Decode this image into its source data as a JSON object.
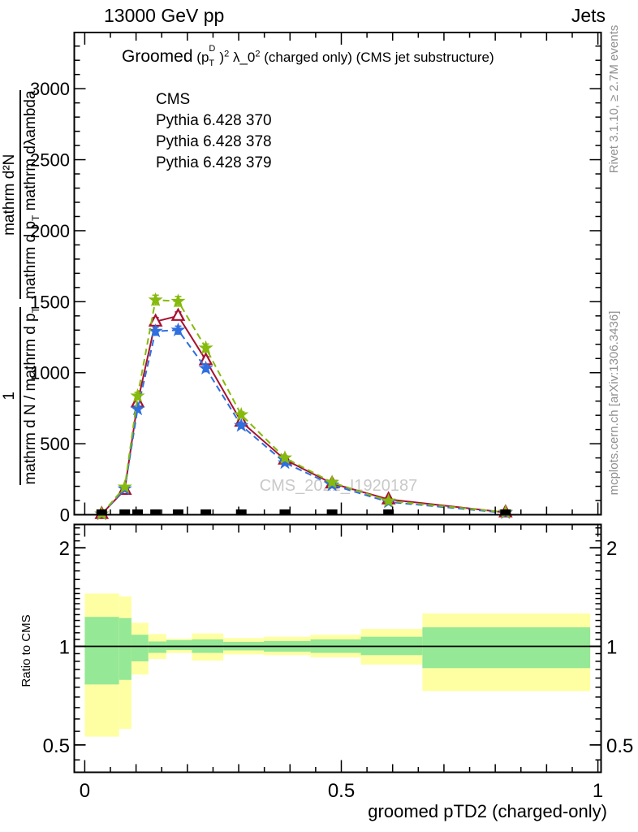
{
  "header": {
    "beam": "13000 GeV pp",
    "topic": "Jets"
  },
  "plot_title": {
    "lead": "Groomed",
    "p_open": "(p",
    "p_sup": "D",
    "p_sub": "T",
    "p_close": ")",
    "p_exp": "2",
    "lambda": "λ_0",
    "lambda_exp": "2",
    "tail": "(charged only) (CMS jet substructure)"
  },
  "legend": {
    "items": [
      {
        "label": "CMS",
        "marker": "square",
        "color": "#000000",
        "line": "none"
      },
      {
        "label": "Pythia 6.428 370",
        "marker": "triangle-open",
        "color": "#a61232",
        "line": "solid"
      },
      {
        "label": "Pythia 6.428 378",
        "marker": "star",
        "color": "#2f6fdf",
        "line": "dashed"
      },
      {
        "label": "Pythia 6.428 379",
        "marker": "star",
        "color": "#86ba0c",
        "line": "dashed"
      }
    ]
  },
  "ylabel": {
    "one": "1",
    "den1": "mathrm d N / mathrm d p",
    "den1_sub": "T",
    "num2": "mathrm d²N",
    "den2a": "mathrm d p",
    "den2_sub": "T",
    "den2b": " mathrm dλambda"
  },
  "right_labels": {
    "rivet": "Rivet 3.1.10, ≥ 2.7M events",
    "mcplots": "mcplots.cern.ch [arXiv:1306.3436]"
  },
  "watermark": "CMS_2021_I1920187",
  "ratio_panel": {
    "label": "Ratio to CMS",
    "yticks": [
      0.5,
      1,
      2
    ]
  },
  "x_axis": {
    "label": "groomed pTD2 (charged-only)",
    "ticks": [
      0,
      0.5,
      1
    ]
  },
  "chart_data": {
    "type": "line",
    "title": "Groomed (p_T^D)^2 lambda_0^2 (charged only) (CMS jet substructure)",
    "xlabel": "groomed pTD2 (charged-only)",
    "ylabel": "1/(dN/dp_T) d^2N/(dp_T dlambda)",
    "xlim": [
      -0.021,
      1.007
    ],
    "ylim": [
      0,
      3390
    ],
    "yticks": [
      0,
      500,
      1000,
      1500,
      2000,
      2500,
      3000
    ],
    "x": [
      0.033,
      0.078,
      0.103,
      0.138,
      0.182,
      0.236,
      0.305,
      0.39,
      0.482,
      0.592,
      0.82
    ],
    "series": [
      {
        "name": "Pythia 6.428 370",
        "color": "#a61232",
        "style": "solid",
        "marker": "triangle-open",
        "values": [
          5,
          175,
          790,
          1360,
          1400,
          1088,
          655,
          388,
          220,
          108,
          16
        ],
        "errors": [
          3,
          10,
          22,
          28,
          28,
          24,
          18,
          13,
          9,
          7,
          3
        ]
      },
      {
        "name": "Pythia 6.428 378",
        "color": "#2f6fdf",
        "style": "dashed",
        "marker": "star",
        "values": [
          5,
          182,
          744,
          1292,
          1300,
          1031,
          628,
          366,
          210,
          90,
          13
        ],
        "errors": [
          3,
          10,
          22,
          28,
          28,
          24,
          18,
          13,
          9,
          7,
          3
        ]
      },
      {
        "name": "Pythia 6.428 379",
        "color": "#86ba0c",
        "style": "dashed",
        "marker": "star",
        "values": [
          6,
          195,
          836,
          1512,
          1503,
          1174,
          704,
          400,
          228,
          97,
          18
        ],
        "errors": [
          3,
          12,
          26,
          34,
          34,
          28,
          20,
          14,
          10,
          7,
          3
        ]
      }
    ],
    "cms_data": {
      "name": "CMS",
      "marker": "square-filled",
      "color": "#000000",
      "values": [
        0,
        0,
        0,
        0,
        0,
        0,
        0,
        0,
        0,
        0,
        0
      ]
    },
    "ratio": {
      "label": "Ratio to CMS",
      "scale": "log",
      "ylim": [
        0.41,
        2.36
      ],
      "yticks": [
        0.5,
        1,
        2
      ],
      "band_colors": {
        "outer": "#feffa3",
        "inner": "#95e895"
      },
      "bin_edges": [
        0,
        0.067,
        0.091,
        0.124,
        0.159,
        0.209,
        0.27,
        0.349,
        0.44,
        0.538,
        0.658,
        0.985
      ],
      "outer_band": [
        [
          0.53,
          1.45
        ],
        [
          0.56,
          1.42
        ],
        [
          0.82,
          1.18
        ],
        [
          0.915,
          1.09
        ],
        [
          0.955,
          1.055
        ],
        [
          0.905,
          1.095
        ],
        [
          0.945,
          1.06
        ],
        [
          0.94,
          1.07
        ],
        [
          0.925,
          1.085
        ],
        [
          0.88,
          1.13
        ],
        [
          0.73,
          1.26
        ]
      ],
      "inner_band": [
        [
          0.765,
          1.23
        ],
        [
          0.79,
          1.22
        ],
        [
          0.9,
          1.085
        ],
        [
          0.955,
          1.035
        ],
        [
          0.975,
          1.045
        ],
        [
          0.955,
          1.05
        ],
        [
          0.972,
          1.032
        ],
        [
          0.963,
          1.038
        ],
        [
          0.955,
          1.05
        ],
        [
          0.94,
          1.07
        ],
        [
          0.858,
          1.143
        ]
      ]
    }
  }
}
